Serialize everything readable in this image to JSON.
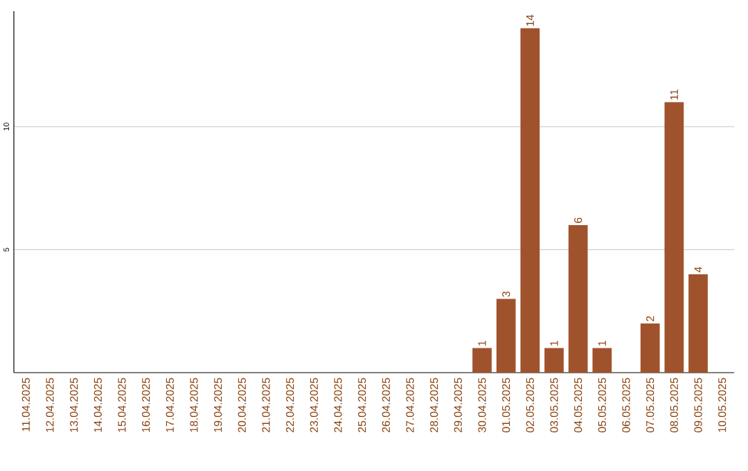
{
  "chart_data": {
    "type": "bar",
    "categories": [
      "11.04.2025",
      "12.04.2025",
      "13.04.2025",
      "14.04.2025",
      "15.04.2025",
      "16.04.2025",
      "17.04.2025",
      "18.04.2025",
      "19.04.2025",
      "20.04.2025",
      "21.04.2025",
      "22.04.2025",
      "23.04.2025",
      "24.04.2025",
      "25.04.2025",
      "26.04.2025",
      "27.04.2025",
      "28.04.2025",
      "29.04.2025",
      "30.04.2025",
      "01.05.2025",
      "02.05.2025",
      "03.05.2025",
      "04.05.2025",
      "05.05.2025",
      "06.05.2025",
      "07.05.2025",
      "08.05.2025",
      "09.05.2025",
      "10.05.2025"
    ],
    "values": [
      0,
      0,
      0,
      0,
      0,
      0,
      0,
      0,
      0,
      0,
      0,
      0,
      0,
      0,
      0,
      0,
      0,
      0,
      0,
      1,
      3,
      14,
      1,
      6,
      1,
      0,
      2,
      11,
      4,
      0
    ],
    "value_labels": [
      null,
      null,
      null,
      null,
      null,
      null,
      null,
      null,
      null,
      null,
      null,
      null,
      null,
      null,
      null,
      null,
      null,
      null,
      null,
      "1",
      "3",
      "14",
      "1",
      "6",
      "1",
      null,
      "2",
      "11",
      "4",
      null
    ],
    "color": "#a0522d",
    "ylim": [
      0,
      14.7
    ],
    "yticks": [
      5,
      10
    ],
    "grid": "y"
  }
}
